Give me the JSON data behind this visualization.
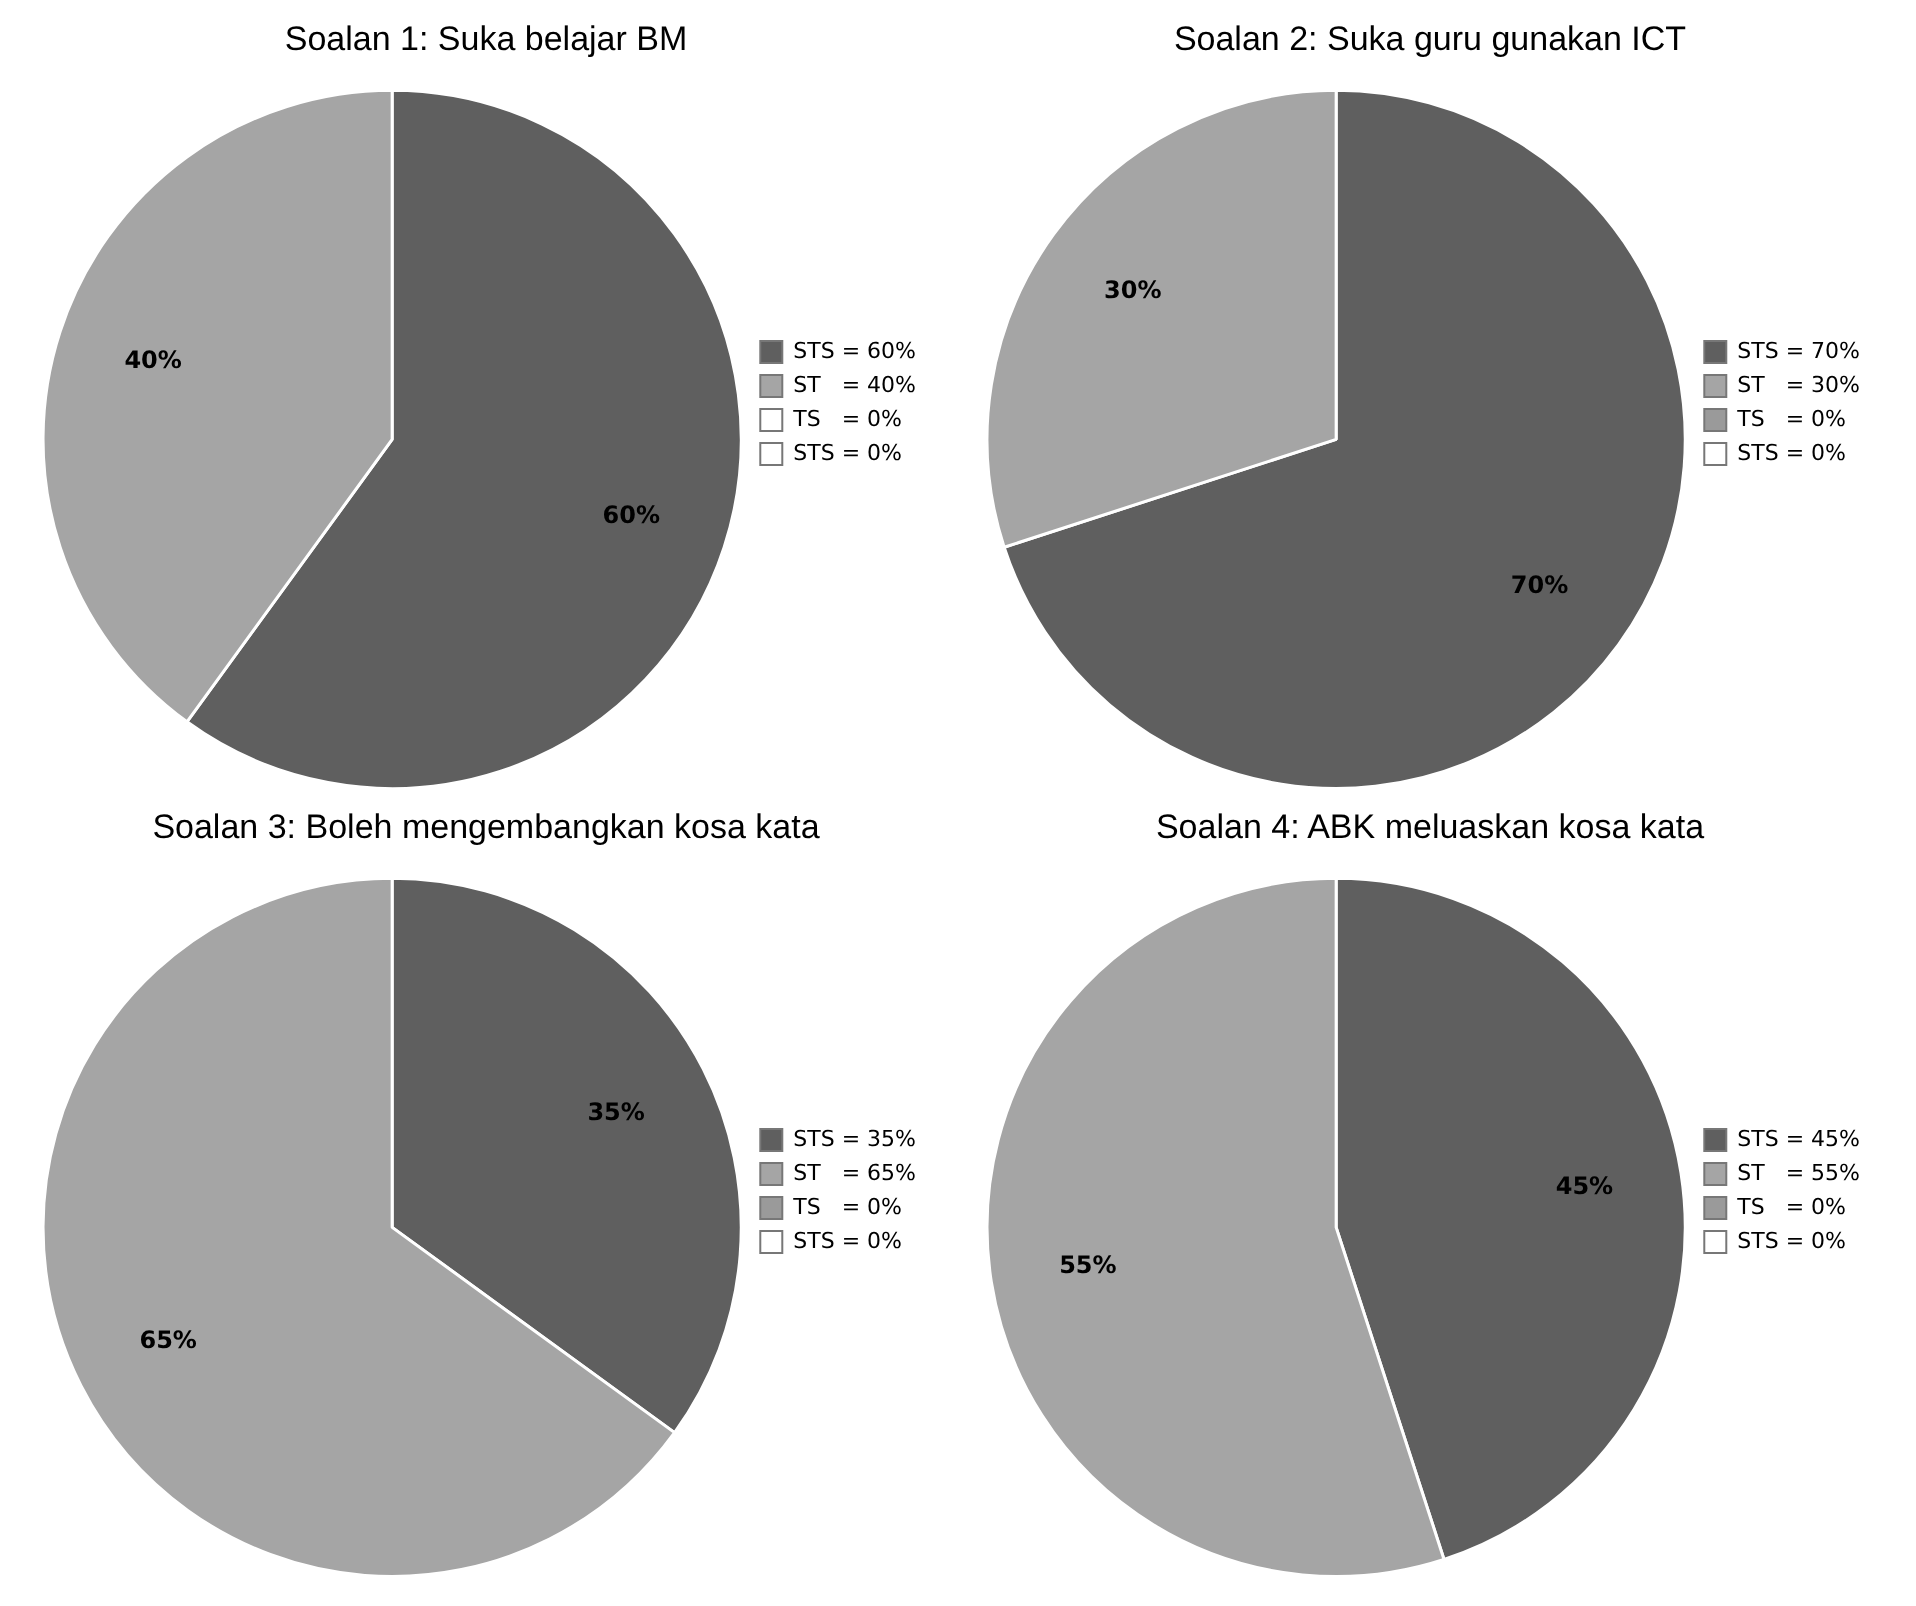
{
  "chart_data": [
    {
      "type": "pie",
      "title": "Soalan 1: Suka belajar BM",
      "categories": [
        "STS = 60%",
        "ST   = 40%",
        "TS   = 0%",
        "STS = 0%"
      ],
      "values": [
        60,
        40,
        0,
        0
      ],
      "colors": [
        "#5f5f5f",
        "#a5a5a5",
        "#ffffff",
        "#ffffff"
      ],
      "value_labels": [
        "60%",
        "40%",
        null,
        null
      ],
      "legend": "right"
    },
    {
      "type": "pie",
      "title": "Soalan 2: Suka guru gunakan ICT",
      "categories": [
        "STS = 70%",
        "ST   = 30%",
        "TS   = 0%",
        "STS = 0%"
      ],
      "values": [
        70,
        30,
        0,
        0
      ],
      "colors": [
        "#5f5f5f",
        "#a5a5a5",
        "#9a9a9a",
        "#ffffff"
      ],
      "value_labels": [
        "70%",
        "30%",
        null,
        null
      ],
      "legend": "right"
    },
    {
      "type": "pie",
      "title": "Soalan 3: Boleh mengembangkan kosa kata",
      "categories": [
        "STS = 35%",
        "ST   = 65%",
        "TS   = 0%",
        "STS = 0%"
      ],
      "values": [
        35,
        65,
        0,
        0
      ],
      "colors": [
        "#5f5f5f",
        "#a5a5a5",
        "#9a9a9a",
        "#ffffff"
      ],
      "value_labels": [
        "35%",
        "65%",
        null,
        null
      ],
      "legend": "right"
    },
    {
      "type": "pie",
      "title": "Soalan 4: ABK meluaskan kosa kata",
      "categories": [
        "STS = 45%",
        "ST   = 55%",
        "TS   = 0%",
        "STS = 0%"
      ],
      "values": [
        45,
        55,
        0,
        0
      ],
      "colors": [
        "#5f5f5f",
        "#a5a5a5",
        "#9a9a9a",
        "#ffffff"
      ],
      "value_labels": [
        "45%",
        "55%",
        null,
        null
      ],
      "legend": "right"
    }
  ]
}
